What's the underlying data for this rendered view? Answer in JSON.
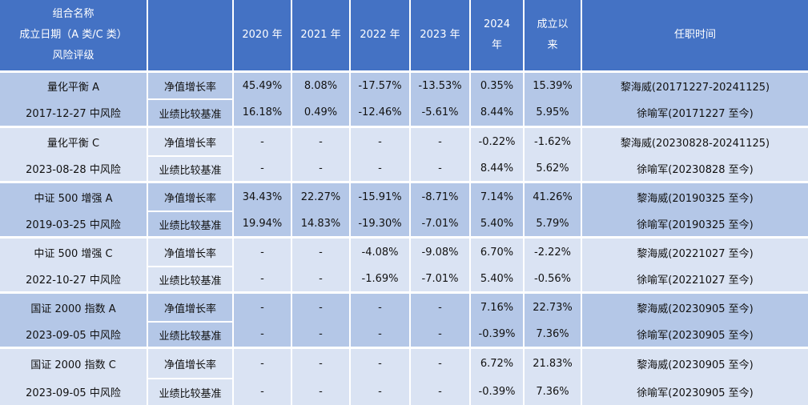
{
  "header": {
    "name_lines": [
      "组合名称",
      "成立日期（A 类/C 类）",
      "风险评级"
    ],
    "metric": "",
    "years": [
      "2020 年",
      "2021 年",
      "2022 年",
      "2023 年"
    ],
    "y2024_lines": [
      "2024",
      "年"
    ],
    "since_lines": [
      "成立以",
      "来"
    ],
    "tenure": "任职时间"
  },
  "funds": [
    {
      "name": "量化平衡 A",
      "info": "2017-12-27 中风险",
      "rows": [
        {
          "metric": "净值增长率",
          "values": [
            "45.49%",
            "8.08%",
            "-17.57%",
            "-13.53%",
            "0.35%",
            "15.39%"
          ],
          "tenure": "黎海威(20171227-20241125)"
        },
        {
          "metric": "业绩比较基准",
          "values": [
            "16.18%",
            "0.49%",
            "-12.46%",
            "-5.61%",
            "8.44%",
            "5.95%"
          ],
          "tenure": "徐喻军(20171227 至今)"
        }
      ]
    },
    {
      "name": "量化平衡 C",
      "info": "2023-08-28 中风险",
      "rows": [
        {
          "metric": "净值增长率",
          "values": [
            "-",
            "-",
            "-",
            "-",
            "-0.22%",
            "-1.62%"
          ],
          "tenure": "黎海威(20230828-20241125)"
        },
        {
          "metric": "业绩比较基准",
          "values": [
            "-",
            "-",
            "-",
            "-",
            "8.44%",
            "5.62%"
          ],
          "tenure": "徐喻军(20230828 至今)"
        }
      ]
    },
    {
      "name": "中证 500 增强 A",
      "info": "2019-03-25 中风险",
      "rows": [
        {
          "metric": "净值增长率",
          "values": [
            "34.43%",
            "22.27%",
            "-15.91%",
            "-8.71%",
            "7.14%",
            "41.26%"
          ],
          "tenure": "黎海威(20190325 至今)"
        },
        {
          "metric": "业绩比较基准",
          "values": [
            "19.94%",
            "14.83%",
            "-19.30%",
            "-7.01%",
            "5.40%",
            "5.79%"
          ],
          "tenure": "徐喻军(20190325 至今)"
        }
      ]
    },
    {
      "name": "中证 500 增强 C",
      "info": "2022-10-27 中风险",
      "rows": [
        {
          "metric": "净值增长率",
          "values": [
            "-",
            "-",
            "-4.08%",
            "-9.08%",
            "6.70%",
            "-2.22%"
          ],
          "tenure": "黎海威(20221027 至今)"
        },
        {
          "metric": "业绩比较基准",
          "values": [
            "-",
            "-",
            "-1.69%",
            "-7.01%",
            "5.40%",
            "-0.56%"
          ],
          "tenure": "徐喻军(20221027 至今)"
        }
      ]
    },
    {
      "name": "国证 2000 指数 A",
      "info": "2023-09-05 中风险",
      "rows": [
        {
          "metric": "净值增长率",
          "values": [
            "-",
            "-",
            "-",
            "-",
            "7.16%",
            "22.73%"
          ],
          "tenure": "黎海威(20230905 至今)"
        },
        {
          "metric": "业绩比较基准",
          "values": [
            "-",
            "-",
            "-",
            "-",
            "-0.39%",
            "7.36%"
          ],
          "tenure": "徐喻军(20230905 至今)"
        }
      ]
    },
    {
      "name": "国证 2000 指数 C",
      "info": "2023-09-05 中风险",
      "rows": [
        {
          "metric": "净值增长率",
          "values": [
            "-",
            "-",
            "-",
            "-",
            "6.72%",
            "21.83%"
          ],
          "tenure": "黎海威(20230905 至今)"
        },
        {
          "metric": "业绩比较基准",
          "values": [
            "-",
            "-",
            "-",
            "-",
            "-0.39%",
            "7.36%"
          ],
          "tenure": "徐喻军(20230905 至今)"
        }
      ]
    }
  ]
}
